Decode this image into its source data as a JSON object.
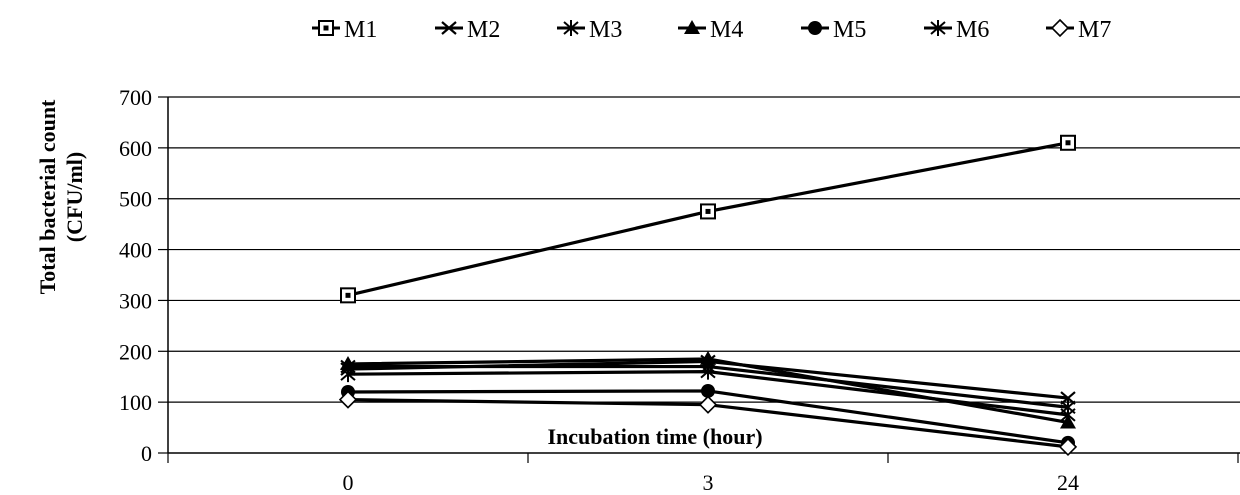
{
  "chart_data": {
    "type": "line",
    "title": "",
    "xlabel": "Incubation time (hour)",
    "ylabel": "Total bacterial count",
    "ylabel_unit": "(CFU/ml)",
    "categories": [
      "0",
      "3",
      "24"
    ],
    "ylim": [
      0,
      700
    ],
    "yticks": [
      "0",
      "100",
      "200",
      "300",
      "400",
      "500",
      "600",
      "700"
    ],
    "grid": true,
    "legend_position": "top",
    "series": [
      {
        "name": "M1",
        "marker": "square-cross",
        "values": [
          310,
          475,
          610
        ]
      },
      {
        "name": "M2",
        "marker": "x",
        "values": [
          165,
          180,
          108
        ]
      },
      {
        "name": "M3",
        "marker": "asterisk",
        "values": [
          155,
          160,
          75
        ]
      },
      {
        "name": "M4",
        "marker": "triangle",
        "values": [
          175,
          185,
          60
        ]
      },
      {
        "name": "M5",
        "marker": "circle",
        "values": [
          120,
          122,
          20
        ]
      },
      {
        "name": "M6",
        "marker": "asterisk",
        "values": [
          170,
          170,
          90
        ]
      },
      {
        "name": "M7",
        "marker": "diamond-open",
        "values": [
          105,
          95,
          12
        ]
      }
    ]
  }
}
